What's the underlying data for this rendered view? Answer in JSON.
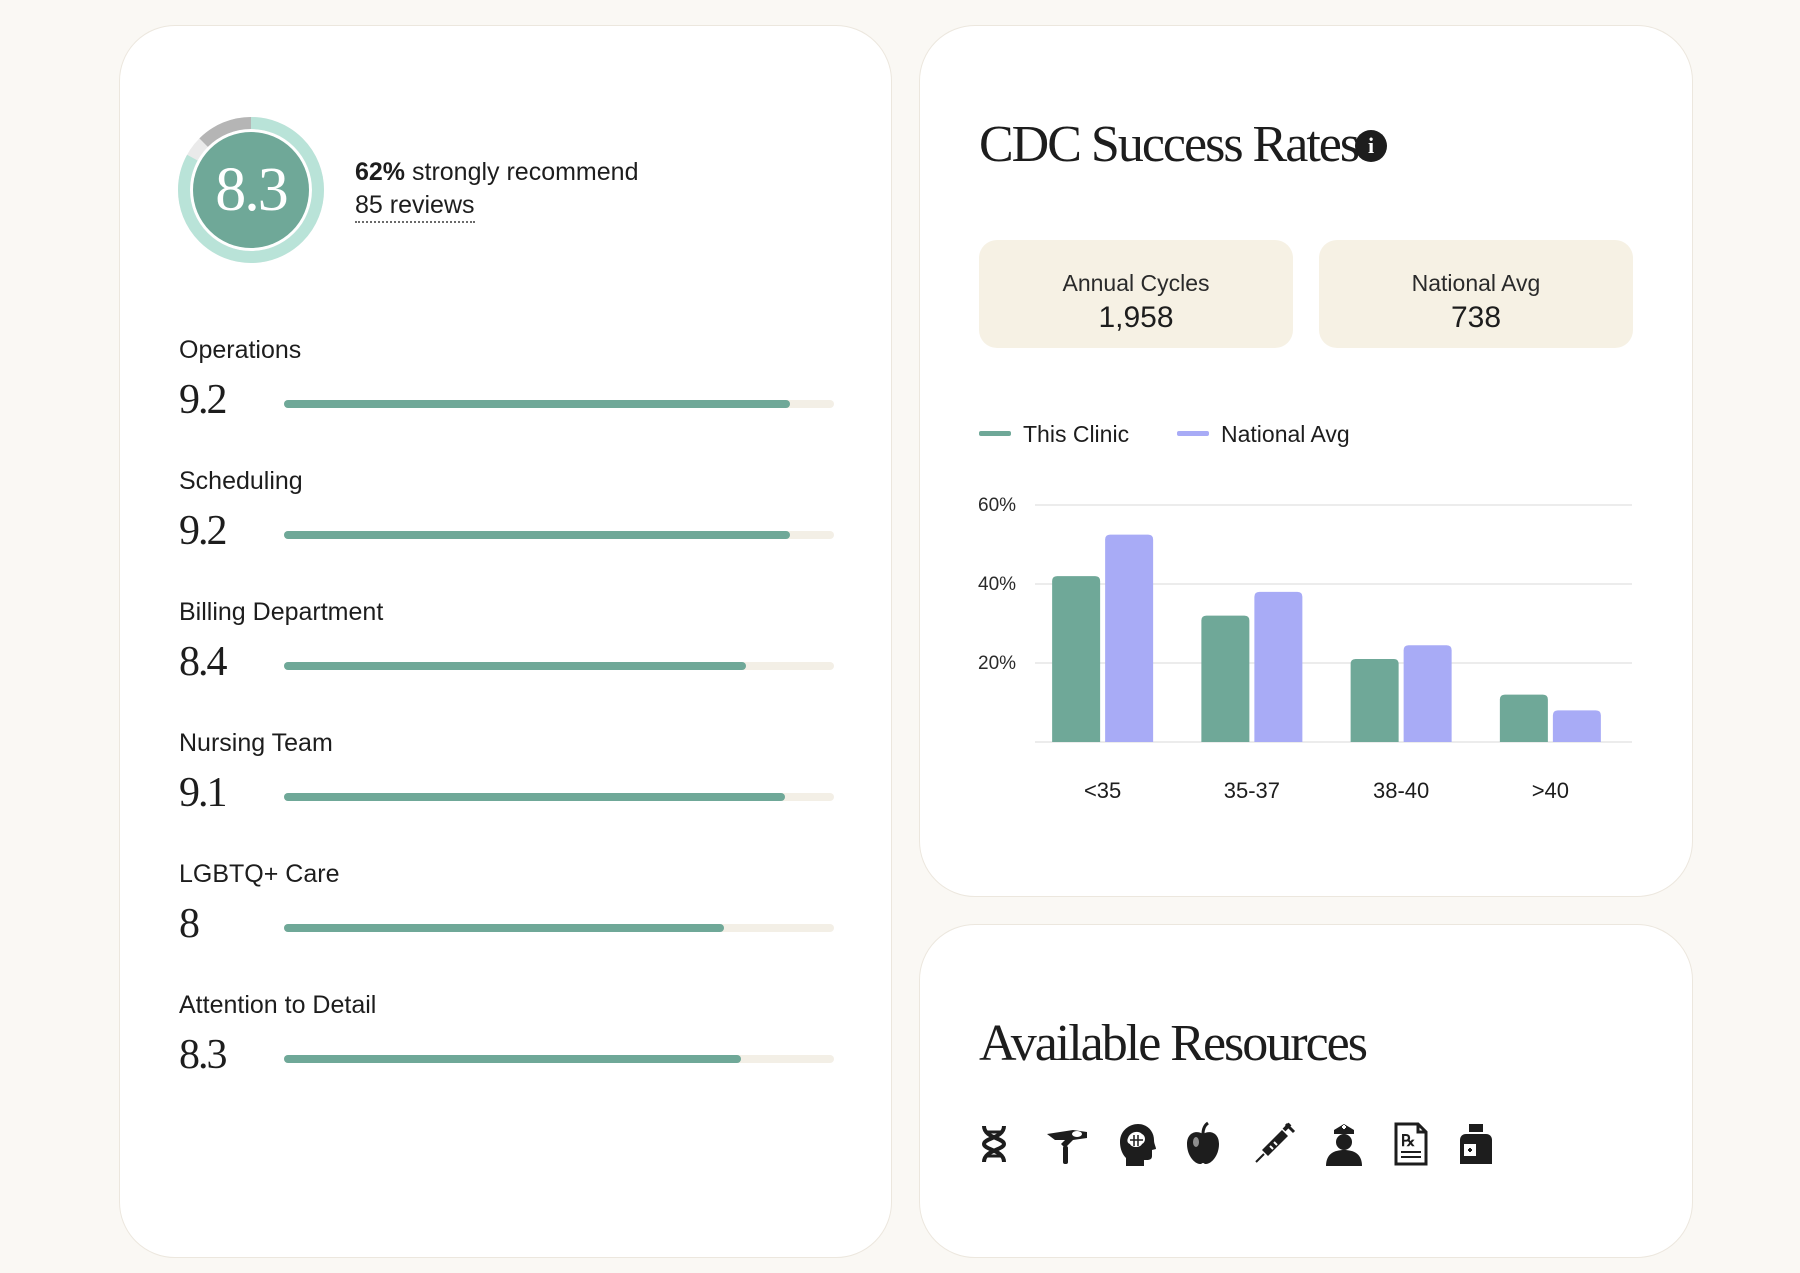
{
  "overall": {
    "score": "8.3",
    "recommend_percent": "62%",
    "recommend_text": " strongly recommend",
    "reviews": "85 reviews",
    "recommend_fraction": 0.62
  },
  "ratings": [
    {
      "label": "Operations",
      "value": "9.2",
      "score": 9.2
    },
    {
      "label": "Scheduling",
      "value": "9.2",
      "score": 9.2
    },
    {
      "label": "Billing Department",
      "value": "8.4",
      "score": 8.4
    },
    {
      "label": "Nursing Team",
      "value": "9.1",
      "score": 9.1
    },
    {
      "label": "LGBTQ+ Care",
      "value": "8",
      "score": 8
    },
    {
      "label": "Attention to Detail",
      "value": "8.3",
      "score": 8.3
    }
  ],
  "cdc": {
    "title": "CDC Success Rates",
    "info_icon": "info-icon",
    "stats": [
      {
        "label": "Annual Cycles",
        "value": "1,958"
      },
      {
        "label": "National Avg",
        "value": "738"
      }
    ]
  },
  "colors": {
    "clinic": "#6fa898",
    "national": "#a8abf6",
    "ring_light": "#b9e3d8",
    "ring_gray": "#b5b5b5",
    "ring_bg": "#eaeaea"
  },
  "chart_data": {
    "type": "bar",
    "categories": [
      "<35",
      "35-37",
      "38-40",
      ">40"
    ],
    "series": [
      {
        "name": "This Clinic",
        "values": [
          42,
          32,
          21,
          12
        ]
      },
      {
        "name": "National Avg",
        "values": [
          52.5,
          38,
          24.5,
          8
        ]
      }
    ],
    "yticks": [
      "20%",
      "40%",
      "60%"
    ],
    "ylim": [
      0,
      60
    ],
    "grid": true,
    "legend": "top-left"
  },
  "resources": {
    "title": "Available Resources",
    "icons": [
      "dna-icon",
      "hand-pill-icon",
      "brain-icon",
      "apple-icon",
      "syringe-icon",
      "nurse-icon",
      "prescription-icon",
      "medicine-bottle-icon"
    ]
  }
}
